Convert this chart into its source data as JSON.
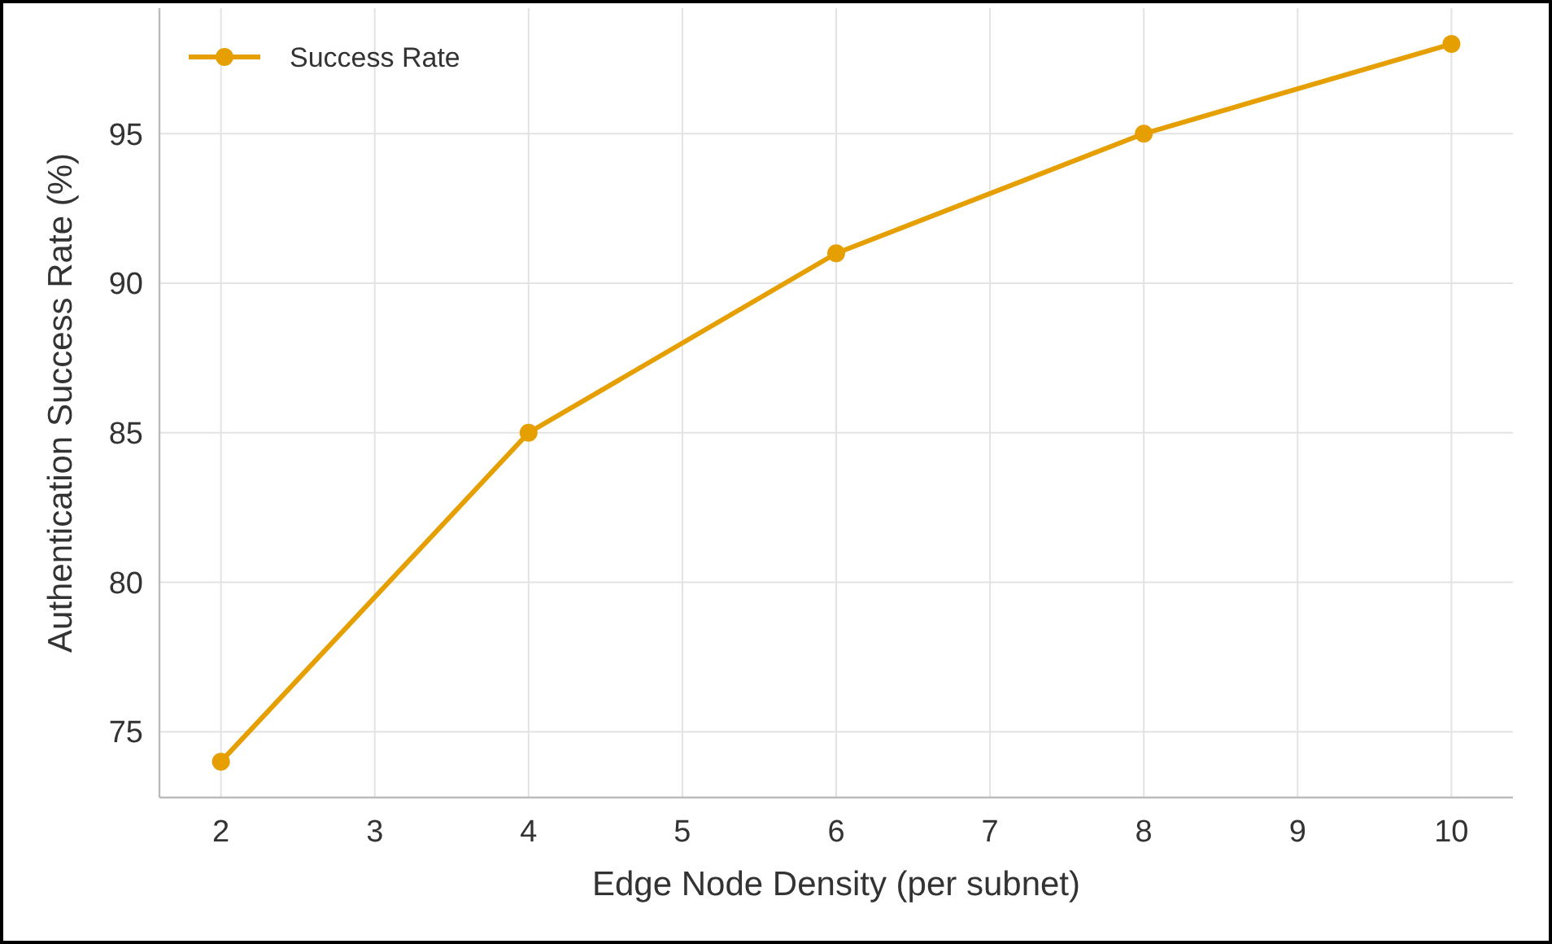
{
  "chart_data": {
    "type": "line",
    "xlabel": "Edge Node Density (per subnet)",
    "ylabel": "Authentication Success Rate (%)",
    "x": [
      2,
      4,
      6,
      8,
      10
    ],
    "series": [
      {
        "name": "Success Rate",
        "color": "#e69f00",
        "values": [
          74,
          85,
          91,
          95,
          98
        ]
      }
    ],
    "xlim": [
      1.6,
      10.4
    ],
    "xticks": [
      2,
      3,
      4,
      5,
      6,
      7,
      8,
      9,
      10
    ],
    "ylim": [
      72.8,
      99.2
    ],
    "yticks": [
      75,
      80,
      85,
      90,
      95
    ],
    "grid": true,
    "legend": "top left",
    "marker": "circle",
    "line_style": "solid"
  }
}
